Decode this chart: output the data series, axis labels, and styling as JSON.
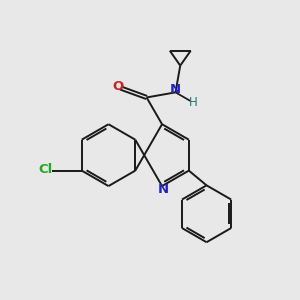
{
  "bg_color": "#e8e8e8",
  "bond_color": "#1a1a1a",
  "bond_width": 1.4,
  "atom_colors": {
    "N": "#2222cc",
    "O": "#cc2222",
    "Cl": "#22aa22",
    "H": "#227777"
  },
  "scale": 1.0
}
